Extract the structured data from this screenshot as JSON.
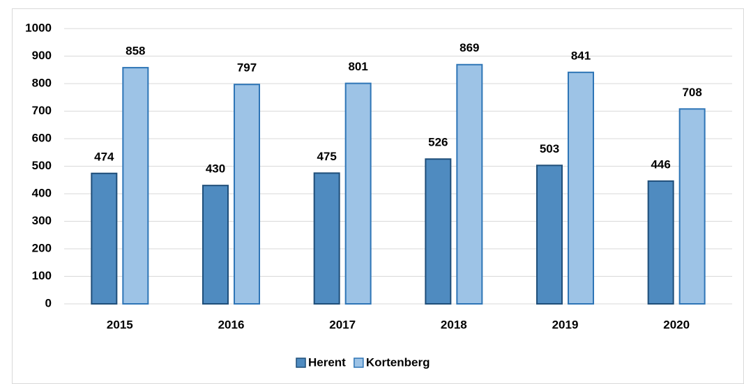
{
  "chart_data": {
    "type": "bar",
    "categories": [
      "2015",
      "2016",
      "2017",
      "2018",
      "2019",
      "2020"
    ],
    "series": [
      {
        "name": "Herent",
        "color": "#4f8bc0",
        "values": [
          474,
          430,
          475,
          526,
          503,
          446
        ]
      },
      {
        "name": "Kortenberg",
        "color": "#9dc3e6",
        "values": [
          858,
          797,
          801,
          869,
          841,
          708
        ]
      }
    ],
    "ylim": [
      0,
      1000
    ],
    "yticks": [
      0,
      100,
      200,
      300,
      400,
      500,
      600,
      700,
      800,
      900,
      1000
    ],
    "grid": true,
    "legend": "bottom"
  }
}
